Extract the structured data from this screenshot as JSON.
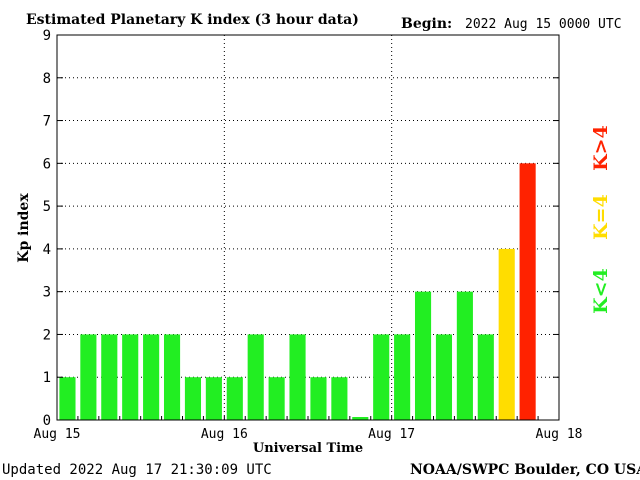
{
  "header": {
    "title": "Estimated Planetary K index (3 hour data)",
    "begin_label": "Begin:",
    "begin_value": "2022 Aug 15 0000 UTC"
  },
  "footer": {
    "updated": "Updated 2022 Aug 17 21:30:09 UTC",
    "source": "NOAA/SWPC Boulder, CO USA"
  },
  "legend": [
    {
      "label": "K<4",
      "color": "#22ee22"
    },
    {
      "label": "K=4",
      "color": "#ffdd00"
    },
    {
      "label": "K>4",
      "color": "#ff2200"
    }
  ],
  "chart_data": {
    "type": "bar",
    "title": "Estimated Planetary K index (3 hour data)",
    "xlabel": "Universal Time",
    "ylabel": "Kp index",
    "ylim": [
      0,
      9
    ],
    "yticks": [
      0,
      1,
      2,
      3,
      4,
      5,
      6,
      7,
      8,
      9
    ],
    "xtick_labels": [
      "Aug 15",
      "Aug 16",
      "Aug 17",
      "Aug 18"
    ],
    "bars_per_day": 8,
    "grid": true,
    "values": [
      1,
      2,
      2,
      2,
      2,
      2,
      1,
      1,
      1,
      2,
      1,
      2,
      1,
      1,
      0.07,
      2,
      2,
      3,
      2,
      3,
      2,
      4,
      6
    ],
    "colors": {
      "low": "#22ee22",
      "equal": "#ffdd00",
      "high": "#ff2200"
    }
  }
}
